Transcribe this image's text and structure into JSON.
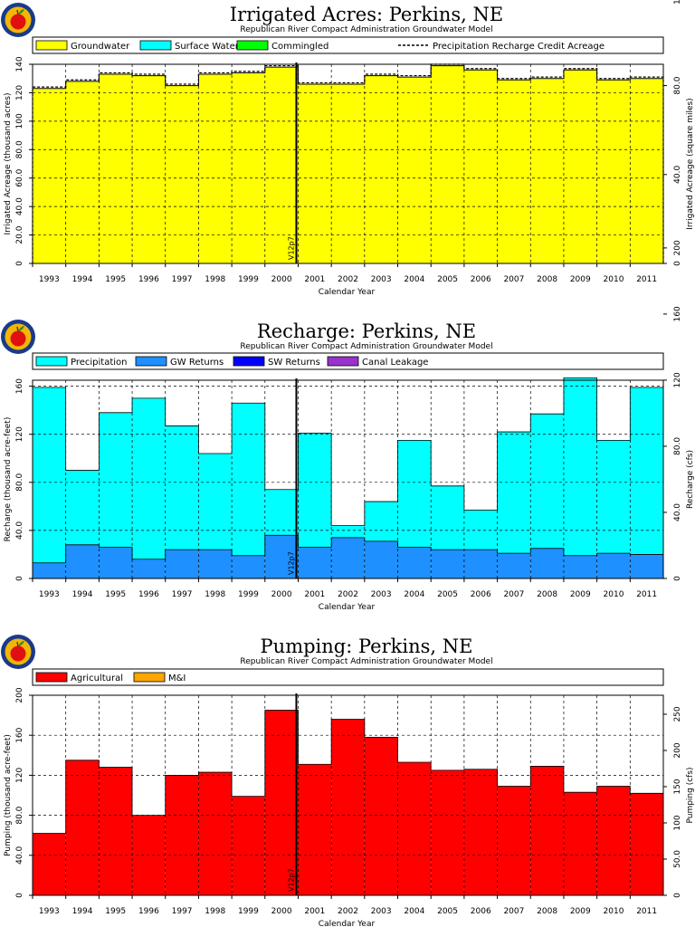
{
  "x_axis": {
    "label": "Calendar Year",
    "years": [
      "1993",
      "1994",
      "1995",
      "1996",
      "1997",
      "1998",
      "1999",
      "2000",
      "2001",
      "2002",
      "2003",
      "2004",
      "2005",
      "2006",
      "2007",
      "2008",
      "2009",
      "2010",
      "2011"
    ]
  },
  "colors": {
    "groundwater": "#ffff00",
    "surface_water": "#00ffff",
    "commingled": "#00ff00",
    "precipitation": "#00ffff",
    "gw_returns": "#1e90ff",
    "sw_returns": "#0000ff",
    "canal_leakage": "#9932cc",
    "agricultural": "#ff0000",
    "mi": "#ffa500",
    "logo_ring": "#1a3a8a",
    "logo_fill": "#f2b705",
    "logo_apple": "#e01010"
  },
  "icons": [
    "apple-seal-logo"
  ],
  "chart_data": [
    {
      "type": "bar",
      "title": "Irrigated Acres: Perkins, NE",
      "subtitle": "Republican River Compact Administration Groundwater Model",
      "ylabel": "Irrigated Acreage (thousand acres)",
      "ylabel_right": "Irrigated Acreage (square miles)",
      "ylim": [
        0,
        140
      ],
      "yticks": [
        "0",
        "20.0",
        "40.0",
        "60.0",
        "80.0",
        "100",
        "120",
        "140"
      ],
      "yticks_right": [
        "0",
        "40.0",
        "80.0",
        "120",
        "160",
        "200"
      ],
      "right_scale": 0.64,
      "marker_label": "V12p7",
      "legend": [
        "Groundwater",
        "Surface Water",
        "Commingled",
        "Precipitation Recharge Credit Acreage"
      ],
      "series": [
        {
          "name": "Groundwater",
          "values": [
            123,
            128,
            133,
            132,
            125,
            133,
            134,
            138,
            126,
            126,
            132,
            131,
            139,
            136,
            129,
            130,
            136,
            129,
            130
          ]
        },
        {
          "name": "Precipitation Recharge Credit Acreage",
          "values": [
            124,
            129,
            134,
            133,
            126,
            134,
            135,
            139,
            127,
            127,
            133,
            132,
            140,
            137,
            130,
            131,
            137,
            130,
            131
          ]
        }
      ]
    },
    {
      "type": "bar",
      "title": "Recharge: Perkins, NE",
      "subtitle": "Republican River Compact Administration Groundwater Model",
      "ylabel": "Recharge (thousand acre-feet)",
      "ylabel_right": "Recharge (cfs)",
      "ylim": [
        0,
        165
      ],
      "yticks": [
        "0",
        "40.0",
        "80.0",
        "120",
        "160"
      ],
      "yticks_right": [
        "0",
        "40.0",
        "80.0",
        "120",
        "160",
        "200"
      ],
      "right_scale": 0.727,
      "marker_label": "V12p7",
      "legend": [
        "Precipitation",
        "GW Returns",
        "SW Returns",
        "Canal Leakage"
      ],
      "series": [
        {
          "name": "GW Returns",
          "values": [
            13,
            28,
            26,
            16,
            24,
            24,
            19,
            36,
            26,
            34,
            31,
            26,
            24,
            24,
            21,
            25,
            19,
            21,
            20
          ]
        },
        {
          "name": "Precipitation",
          "values": [
            146,
            62,
            112,
            134,
            103,
            80,
            127,
            38,
            95,
            10,
            33,
            89,
            53,
            33,
            101,
            112,
            148,
            94,
            139
          ]
        }
      ]
    },
    {
      "type": "bar",
      "title": "Pumping: Perkins, NE",
      "subtitle": "Republican River Compact Administration Groundwater Model",
      "ylabel": "Pumping (thousand acre-feet)",
      "ylabel_right": "Pumping (cfs)",
      "ylim": [
        0,
        200
      ],
      "yticks": [
        "0",
        "40.0",
        "80.0",
        "120",
        "160",
        "200"
      ],
      "yticks_right": [
        "0",
        "50.0",
        "100",
        "150",
        "200",
        "250"
      ],
      "right_scale": 1.381,
      "marker_label": "V12p7",
      "legend": [
        "Agricultural",
        "M&I"
      ],
      "series": [
        {
          "name": "Agricultural",
          "values": [
            62,
            135,
            128,
            80,
            120,
            123,
            99,
            185,
            131,
            176,
            158,
            133,
            125,
            126,
            109,
            129,
            103,
            109,
            102
          ]
        }
      ]
    }
  ]
}
